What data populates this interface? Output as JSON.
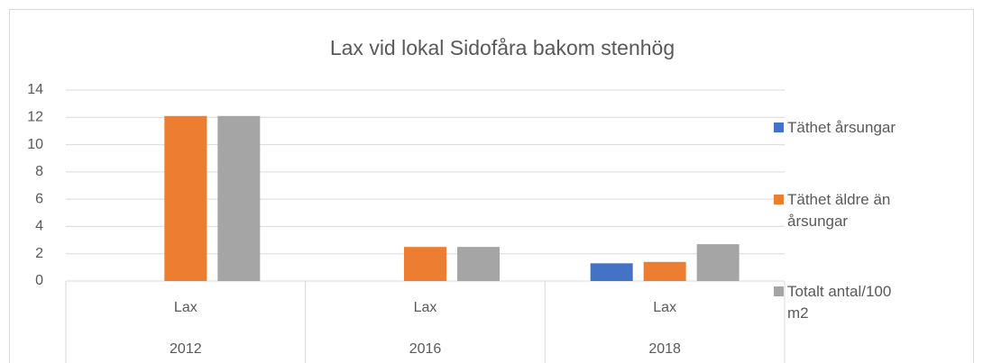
{
  "chart_data": {
    "type": "bar",
    "title": "Lax vid lokal Sidofåra bakom stenhög",
    "categories": [
      "Lax",
      "Lax",
      "Lax"
    ],
    "groups": [
      "2012",
      "2016",
      "2018"
    ],
    "series": [
      {
        "name": "Täthet årsungar",
        "color": "#4472c4",
        "values": [
          null,
          null,
          1.3
        ]
      },
      {
        "name": "Täthet äldre än årsungar",
        "color": "#ed7d31",
        "values": [
          12.1,
          2.5,
          1.4
        ]
      },
      {
        "name": "Totalt antal/100 m2",
        "color": "#a5a5a5",
        "values": [
          12.1,
          2.5,
          2.7
        ]
      }
    ],
    "ylim": [
      0,
      14
    ],
    "yticks": [
      0,
      2,
      4,
      6,
      8,
      10,
      12,
      14
    ],
    "grid": true,
    "legend": "right"
  }
}
